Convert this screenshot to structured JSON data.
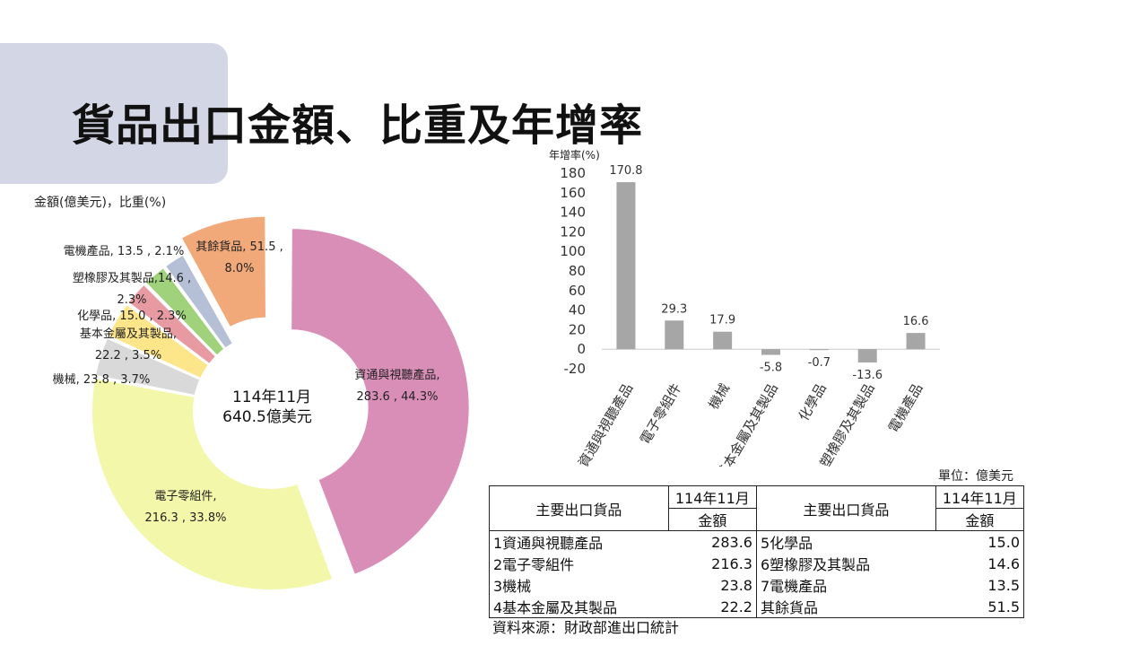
{
  "title": "貨品出口金額、比重及年增率",
  "pie": {
    "unit_label": "金額(億美元)，比重(%)",
    "center_line1": "114年11月",
    "center_line2": "640.5億美元"
  },
  "chart_data": [
    {
      "type": "pie",
      "title": "",
      "unit": "金額(億美元)，比重(%)",
      "center_text": [
        "114年11月",
        "640.5億美元"
      ],
      "total": 640.5,
      "slices": [
        {
          "name": "資通與視聽產品",
          "value": 283.6,
          "percent": 44.3,
          "color": "#d98eb8",
          "label": [
            "資通與視聽產品,",
            "283.6 , 44.3%"
          ]
        },
        {
          "name": "電子零組件",
          "value": 216.3,
          "percent": 33.8,
          "color": "#f2f7a9",
          "label": [
            "電子零組件,",
            "216.3 , 33.8%"
          ]
        },
        {
          "name": "機械",
          "value": 23.8,
          "percent": 3.7,
          "color": "#d9d9d9",
          "label": [
            "機械, 23.8 , 3.7%"
          ]
        },
        {
          "name": "基本金屬及其製品",
          "value": 22.2,
          "percent": 3.5,
          "color": "#fde58a",
          "label": [
            "基本金屬及其製品,",
            "22.2 , 3.5%"
          ]
        },
        {
          "name": "化學品",
          "value": 15.0,
          "percent": 2.3,
          "color": "#e89aa3",
          "label": [
            "化學品, 15.0 , 2.3%"
          ]
        },
        {
          "name": "塑橡膠及其製品",
          "value": 14.6,
          "percent": 2.3,
          "color": "#9fd27a",
          "label": [
            "塑橡膠及其製品,14.6 ,",
            "2.3%"
          ]
        },
        {
          "name": "電機產品",
          "value": 13.5,
          "percent": 2.1,
          "color": "#b5c0d6",
          "label": [
            "電機產品, 13.5 , 2.1%"
          ]
        },
        {
          "name": "其餘貨品",
          "value": 51.5,
          "percent": 8.0,
          "color": "#f2a97a",
          "label": [
            "其餘貨品, 51.5 ,",
            "8.0%"
          ]
        }
      ]
    },
    {
      "type": "bar",
      "title": "",
      "ylabel": "年增率(%)",
      "categories": [
        "資通與視聽產品",
        "電子零組件",
        "機械",
        "基本金屬及其製品",
        "化學品",
        "塑橡膠及其製品",
        "電機產品"
      ],
      "values": [
        170.8,
        29.3,
        17.9,
        -5.8,
        -0.7,
        -13.6,
        16.6
      ],
      "data_labels": [
        "170.8",
        "29.3",
        "17.9",
        "-5.8",
        "-0.7",
        "-13.6",
        "16.6"
      ],
      "ylim": [
        -20,
        180
      ],
      "yticks": [
        "-20",
        "0",
        "20",
        "40",
        "60",
        "80",
        "100",
        "120",
        "140",
        "160",
        "180"
      ],
      "bar_color": "#a6a6a6",
      "grid": false
    }
  ],
  "table": {
    "unit_label": "單位：億美元",
    "header_item": "主要出口貨品",
    "header_period": "114年11月",
    "header_amount": "金額",
    "rows": [
      {
        "left_name": "1資通與視聽產品",
        "left_value": "283.6",
        "right_name": "5化學品",
        "right_value": "15.0"
      },
      {
        "left_name": "2電子零組件",
        "left_value": "216.3",
        "right_name": "6塑橡膠及其製品",
        "right_value": "14.6"
      },
      {
        "left_name": "3機械",
        "left_value": "23.8",
        "right_name": "7電機產品",
        "right_value": "13.5"
      },
      {
        "left_name": "4基本金屬及其製品",
        "left_value": "22.2",
        "right_name": "其餘貨品",
        "right_value": "51.5"
      }
    ]
  },
  "source": "資料來源：財政部進出口統計"
}
